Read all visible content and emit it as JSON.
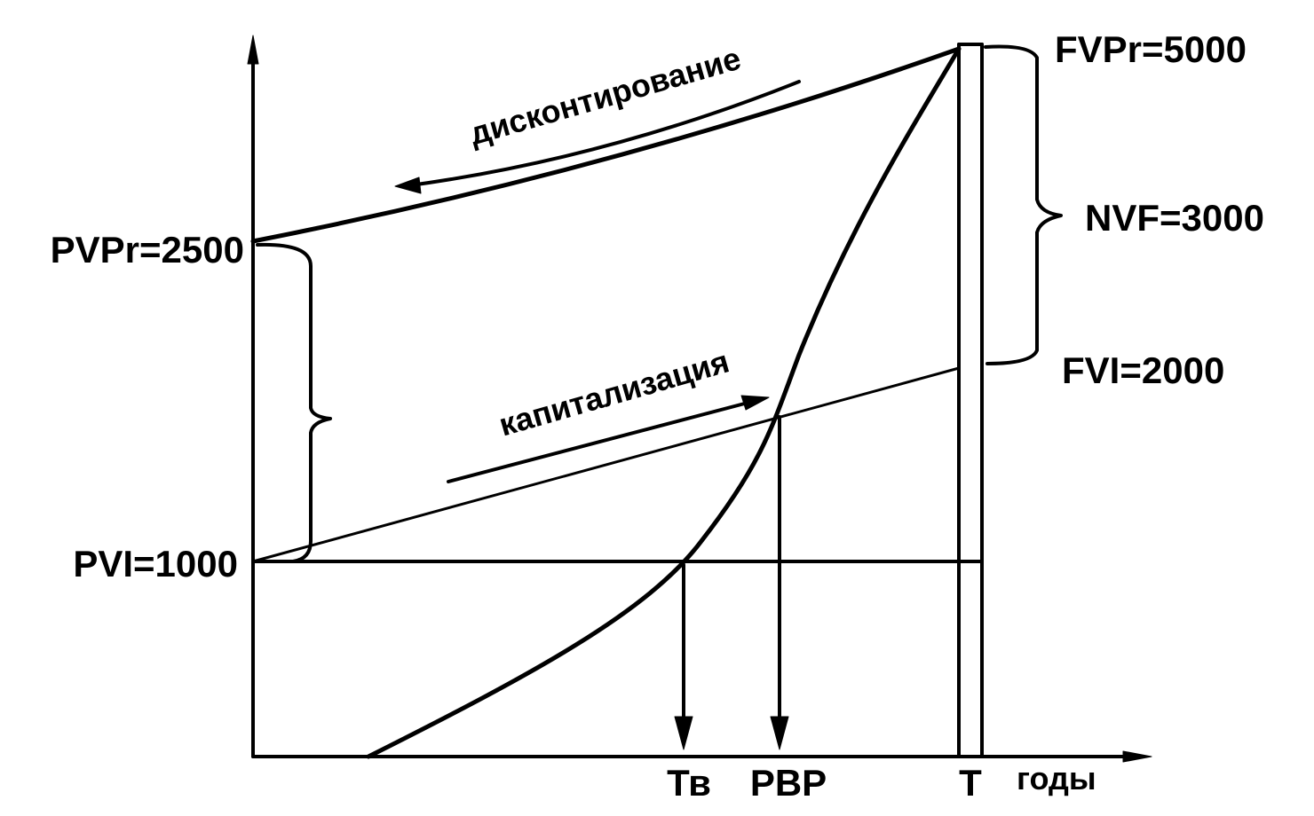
{
  "annotations": {
    "discounting": "дисконтирование",
    "capitalization": "капитализация"
  },
  "y_labels": {
    "pvpr": "PVPr=2500",
    "pvi": "PVI=1000"
  },
  "right_labels": {
    "fvpr": "FVPr=5000",
    "nvf": "NVF=3000",
    "fvi": "FVI=2000"
  },
  "x_labels": {
    "tv": "Тв",
    "pbp": "PBP",
    "t": "T",
    "years": "годы"
  }
}
